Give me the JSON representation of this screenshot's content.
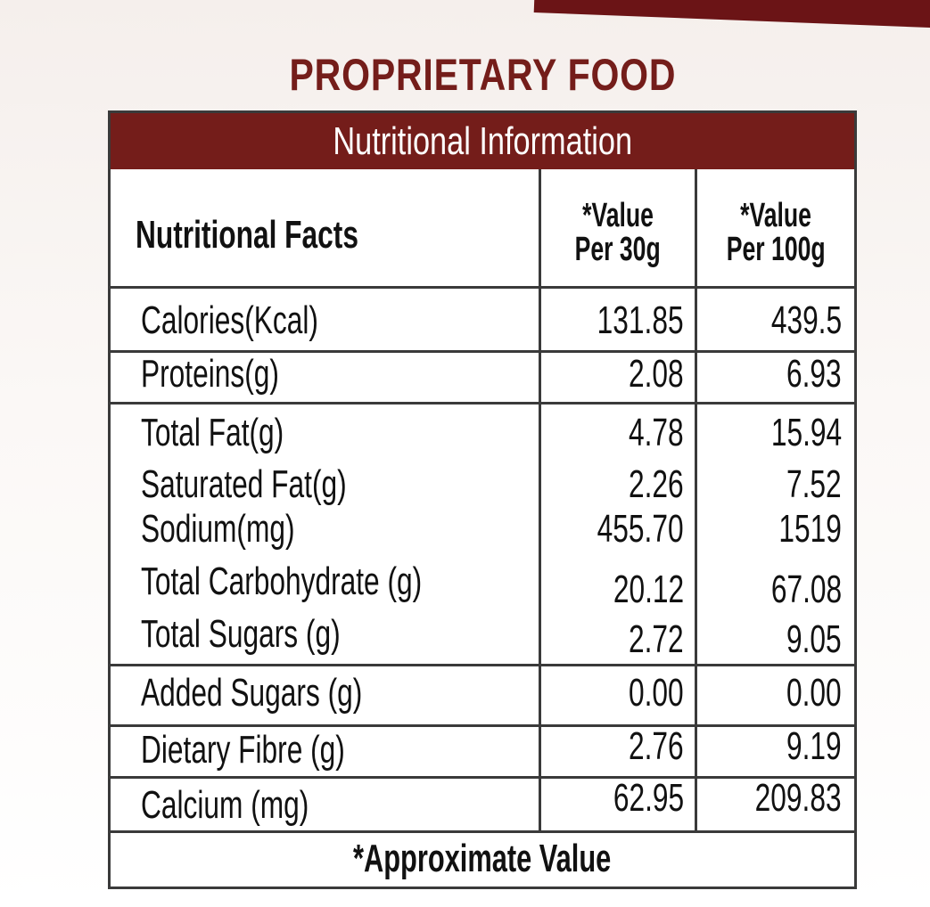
{
  "product_title": "PROPRIETARY FOOD",
  "panel_title": "Nutritional Information",
  "columns": {
    "facts": "Nutritional Facts",
    "per30_line1": "*Value",
    "per30_line2": "Per 30g",
    "per100_line1": "*Value",
    "per100_line2": "Per 100g"
  },
  "rows": [
    {
      "label": "Calories(Kcal)",
      "per30": "131.85",
      "per100": "439.5"
    },
    {
      "label": "Proteins(g)",
      "per30": "2.08",
      "per100": "6.93"
    },
    {
      "label": "Total Fat(g)",
      "per30": "4.78",
      "per100": "15.94"
    },
    {
      "label": "Saturated Fat(g)",
      "per30": "2.26",
      "per100": "7.52"
    },
    {
      "label": "Sodium(mg)",
      "per30": "455.70",
      "per100": "1519"
    },
    {
      "label": "Total Carbohydrate (g)",
      "per30": "20.12",
      "per100": "67.08"
    },
    {
      "label": "Total Sugars (g)",
      "per30": "2.72",
      "per100": "9.05"
    },
    {
      "label": "Added Sugars (g)",
      "per30": "0.00",
      "per100": "0.00"
    },
    {
      "label": "Dietary Fibre (g)",
      "per30": "2.76",
      "per100": "9.19"
    },
    {
      "label": "Calcium (mg)",
      "per30": "62.95",
      "per100": "209.83"
    }
  ],
  "footnote": "*Approximate Value",
  "colors": {
    "brand_maroon": "#741d1a",
    "rule": "#3a3a3a"
  }
}
